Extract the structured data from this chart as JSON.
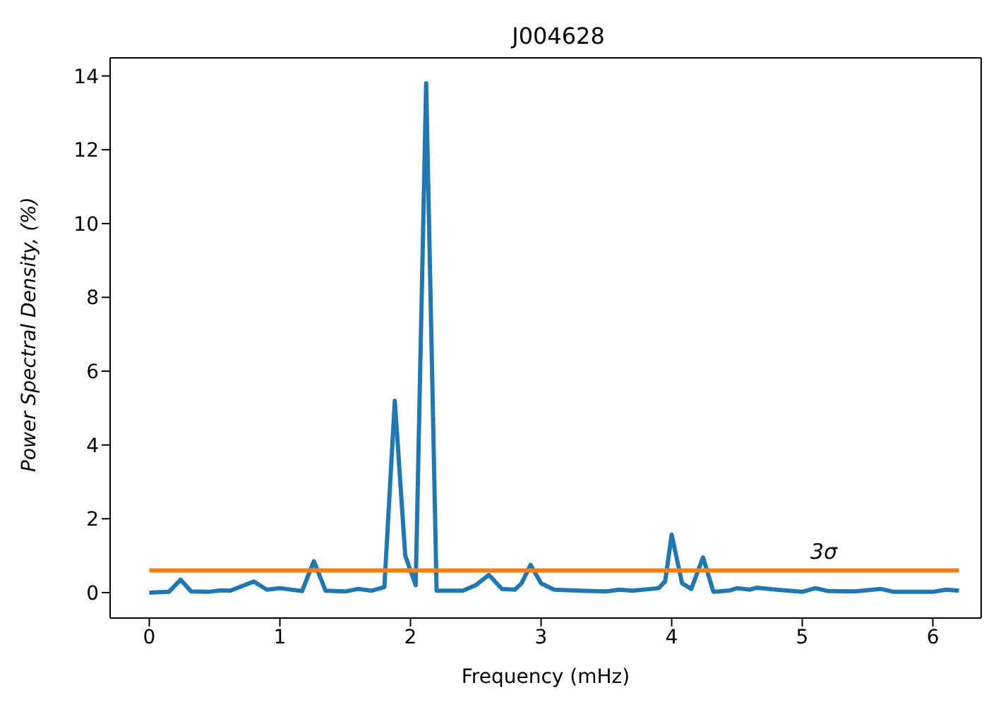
{
  "chart_data": {
    "type": "line",
    "title": "J004628",
    "xlabel": "Frequency (mHz)",
    "ylabel": "Power Spectral Density, (%)",
    "xlim": [
      -0.3,
      6.37
    ],
    "xticks": [
      0,
      1,
      2,
      3,
      4,
      5,
      6
    ],
    "ylim": [
      -0.69,
      14.49
    ],
    "yticks": [
      0,
      2,
      4,
      6,
      8,
      10,
      12,
      14
    ],
    "grid": false,
    "legend": false,
    "marker": "none",
    "line_style": "solid",
    "series": [
      {
        "color": "#1f77b4",
        "x": [
          0,
          0.15,
          0.24,
          0.32,
          0.45,
          0.55,
          0.62,
          0.8,
          0.9,
          1.0,
          1.17,
          1.26,
          1.35,
          1.5,
          1.6,
          1.7,
          1.8,
          1.88,
          1.96,
          2.04,
          2.12,
          2.2,
          2.4,
          2.5,
          2.6,
          2.7,
          2.8,
          2.85,
          2.92,
          3.0,
          3.1,
          3.3,
          3.5,
          3.6,
          3.7,
          3.9,
          3.95,
          4.0,
          4.08,
          4.15,
          4.24,
          4.32,
          4.45,
          4.5,
          4.6,
          4.65,
          4.8,
          5.0,
          5.1,
          5.2,
          5.4,
          5.6,
          5.7,
          6.0,
          6.1,
          6.2
        ],
        "values": [
          0,
          0.02,
          0.35,
          0.03,
          0.02,
          0.06,
          0.05,
          0.3,
          0.08,
          0.12,
          0.04,
          0.85,
          0.05,
          0.03,
          0.1,
          0.05,
          0.15,
          5.2,
          1.0,
          0.2,
          13.8,
          0.05,
          0.05,
          0.2,
          0.48,
          0.1,
          0.08,
          0.25,
          0.75,
          0.25,
          0.08,
          0.05,
          0.03,
          0.08,
          0.05,
          0.12,
          0.3,
          1.57,
          0.25,
          0.1,
          0.95,
          0.02,
          0.06,
          0.12,
          0.08,
          0.13,
          0.08,
          0.02,
          0.12,
          0.04,
          0.03,
          0.1,
          0.02,
          0.02,
          0.08,
          0.05
        ]
      },
      {
        "color": "#ff7f0e",
        "x": [
          0,
          6.2
        ],
        "values": [
          0.6,
          0.6
        ]
      }
    ],
    "annotations": [
      "3σ"
    ]
  }
}
